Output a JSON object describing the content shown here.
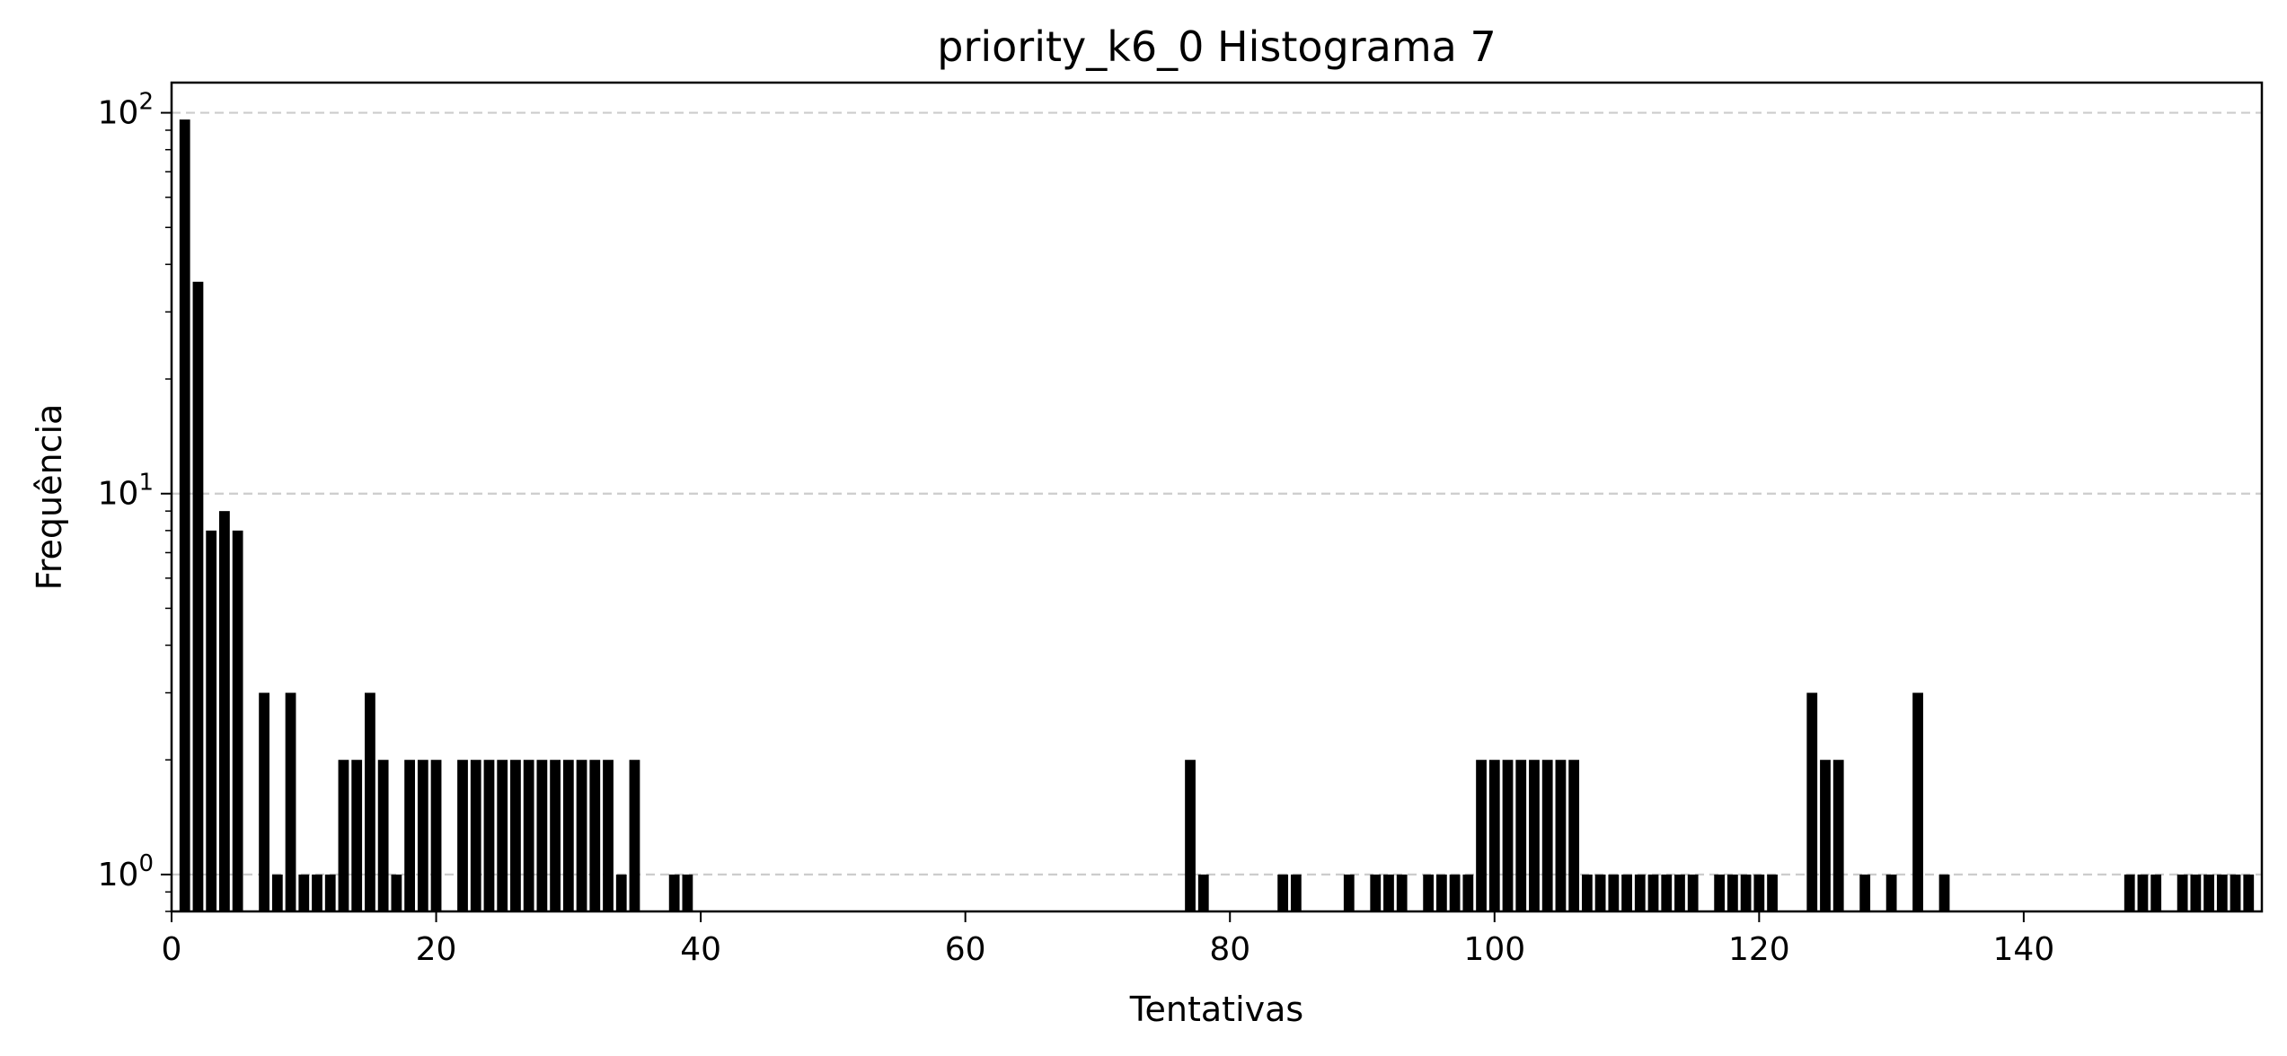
{
  "chart_data": {
    "type": "bar",
    "title": "priority_k6_0 Histograma 7",
    "xlabel": "Tentativas",
    "ylabel": "Frequência",
    "yscale": "log",
    "xlim": [
      0,
      158
    ],
    "ylim": [
      0.8,
      120
    ],
    "grid": "y-major dashed",
    "x_ticks": [
      "0",
      "20",
      "40",
      "60",
      "80",
      "100",
      "120",
      "140"
    ],
    "y_ticks": [
      {
        "base": "10",
        "exp": "0"
      },
      {
        "base": "10",
        "exp": "1"
      },
      {
        "base": "10",
        "exp": "2"
      }
    ],
    "x": [
      1,
      2,
      3,
      4,
      5,
      7,
      8,
      9,
      10,
      11,
      12,
      13,
      14,
      15,
      16,
      17,
      18,
      19,
      20,
      22,
      23,
      24,
      25,
      26,
      27,
      28,
      29,
      30,
      31,
      32,
      33,
      34,
      35,
      38,
      39,
      77,
      78,
      84,
      85,
      89,
      91,
      92,
      93,
      95,
      96,
      97,
      98,
      99,
      100,
      101,
      102,
      103,
      104,
      105,
      106,
      107,
      108,
      109,
      110,
      111,
      112,
      113,
      114,
      115,
      117,
      118,
      119,
      120,
      121,
      124,
      125,
      126,
      128,
      130,
      132,
      134,
      148,
      149,
      150,
      152,
      153,
      154,
      155,
      156,
      157
    ],
    "values": [
      96,
      36,
      8,
      9,
      8,
      3,
      1,
      3,
      1,
      1,
      1,
      2,
      2,
      3,
      2,
      1,
      2,
      2,
      2,
      2,
      2,
      2,
      2,
      2,
      2,
      2,
      2,
      2,
      2,
      2,
      2,
      1,
      2,
      1,
      1,
      2,
      1,
      1,
      1,
      1,
      1,
      1,
      1,
      1,
      1,
      1,
      1,
      2,
      2,
      2,
      2,
      2,
      2,
      2,
      2,
      1,
      1,
      1,
      1,
      1,
      1,
      1,
      1,
      1,
      1,
      1,
      1,
      1,
      1,
      3,
      2,
      2,
      1,
      1,
      3,
      1,
      1,
      1,
      1,
      1,
      1,
      1,
      1,
      1,
      1
    ],
    "bar_color": "#000000",
    "grid_color": "#cccccc"
  }
}
